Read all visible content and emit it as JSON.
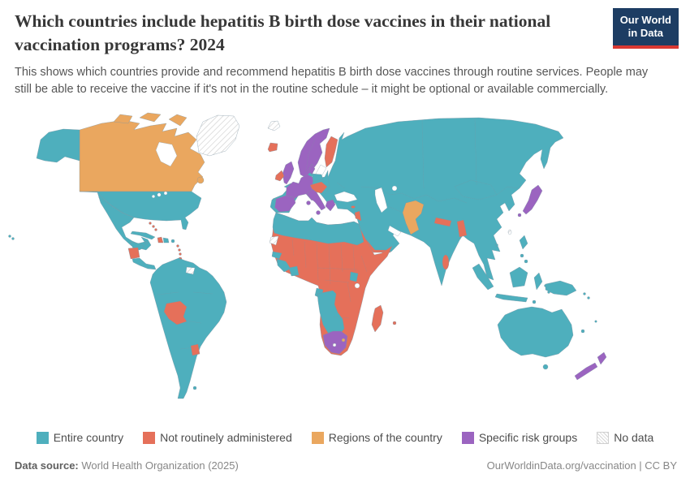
{
  "header": {
    "title_line1": "Which countries include hepatitis B birth dose vaccines in their national",
    "title_line2": "vaccination programs? 2024",
    "subtitle_line1": "This shows which countries provide and recommend hepatitis B birth dose vaccines through routine services. People may",
    "subtitle_line2": "still be able to receive the vaccine if it's not in the routine schedule – it might be optional or available commercially.",
    "logo_line1": "Our World",
    "logo_line2": "in Data",
    "logo_colors": {
      "background": "#1d3d63",
      "underline": "#d93832",
      "text": "#ffffff"
    }
  },
  "legend": {
    "items": [
      {
        "key": "entire",
        "label": "Entire country",
        "color": "#4eafbd"
      },
      {
        "key": "not_routine",
        "label": "Not routinely administered",
        "color": "#e5705a"
      },
      {
        "key": "regions",
        "label": "Regions of the country",
        "color": "#eaa75f"
      },
      {
        "key": "risk",
        "label": "Specific risk groups",
        "color": "#9b64c0"
      },
      {
        "key": "nodata",
        "label": "No data",
        "color": "hatch"
      }
    ]
  },
  "footer": {
    "source_label": "Data source:",
    "source_text": " World Health Organization (2025)",
    "attribution": "OurWorldinData.org/vaccination | CC BY"
  },
  "chart_data": {
    "type": "choropleth_map",
    "title": "Which countries include hepatitis B birth dose vaccines in their national vaccination programs? 2024",
    "year": 2024,
    "legend_categories": [
      "Entire country",
      "Not routinely administered",
      "Regions of the country",
      "Specific risk groups",
      "No data"
    ],
    "category_colors": {
      "entire": "#4eafbd",
      "not_routine": "#e5705a",
      "regions": "#eaa75f",
      "risk": "#9b64c0",
      "nodata": "#ffffff"
    },
    "assignments": {
      "entire_country": [
        "United States",
        "Mexico",
        "Guatemala",
        "Honduras",
        "Costa Rica",
        "Panama",
        "Cuba",
        "Dominican Republic",
        "Jamaica",
        "Colombia",
        "Venezuela",
        "Ecuador",
        "Peru",
        "Brazil",
        "Argentina",
        "Chile",
        "Paraguay",
        "Guyana",
        "Portugal",
        "Poland",
        "Czechia",
        "Slovakia",
        "Romania",
        "Bulgaria",
        "Serbia",
        "Ukraine",
        "Belarus",
        "Estonia",
        "Latvia",
        "Lithuania",
        "Turkey",
        "Saudi Arabia",
        "Iraq",
        "Iran",
        "Kazakhstan",
        "Uzbekistan",
        "Russia",
        "China",
        "Mongolia",
        "South Korea",
        "India",
        "Bhutan",
        "Myanmar",
        "Thailand",
        "Laos",
        "Cambodia",
        "Vietnam",
        "Malaysia",
        "Indonesia",
        "Philippines",
        "Papua New Guinea",
        "Australia",
        "Morocco",
        "Algeria",
        "Tunisia",
        "Libya",
        "Egypt",
        "Senegal",
        "Guinea",
        "Sierra Leone",
        "Liberia",
        "Cote d'Ivoire",
        "Gabon",
        "Uganda",
        "Angola",
        "Namibia",
        "Botswana"
      ],
      "not_routinely_administered": [
        "Haiti",
        "Bahamas",
        "Nicaragua",
        "Trinidad and Tobago",
        "Bolivia",
        "Uruguay",
        "Iceland",
        "Ireland",
        "Finland",
        "Austria",
        "Hungary",
        "Slovenia",
        "Croatia",
        "Cyprus",
        "Jordan",
        "Lebanon",
        "Yemen",
        "Nepal",
        "Bangladesh",
        "Sri Lanka",
        "Mauritania",
        "Mali",
        "Niger",
        "Chad",
        "Sudan",
        "Eritrea",
        "Ethiopia",
        "Somalia",
        "Kenya",
        "Tanzania",
        "Nigeria",
        "Ghana",
        "Cameroon",
        "DR Congo",
        "Zambia",
        "Zimbabwe",
        "Mozambique",
        "Malawi",
        "Madagascar",
        "Mauritius"
      ],
      "regions_of_the_country": [
        "Canada",
        "Pakistan",
        "Eswatini"
      ],
      "specific_risk_groups": [
        "United Kingdom",
        "Norway",
        "Sweden",
        "Denmark",
        "Netherlands",
        "Belgium",
        "France",
        "Germany",
        "Switzerland",
        "Spain",
        "Italy",
        "Greece",
        "Japan",
        "New Zealand",
        "South Africa"
      ],
      "no_data": [
        "Greenland",
        "Western Sahara",
        "Suriname",
        "Svalbard",
        "Taiwan",
        "Lesotho"
      ]
    }
  }
}
